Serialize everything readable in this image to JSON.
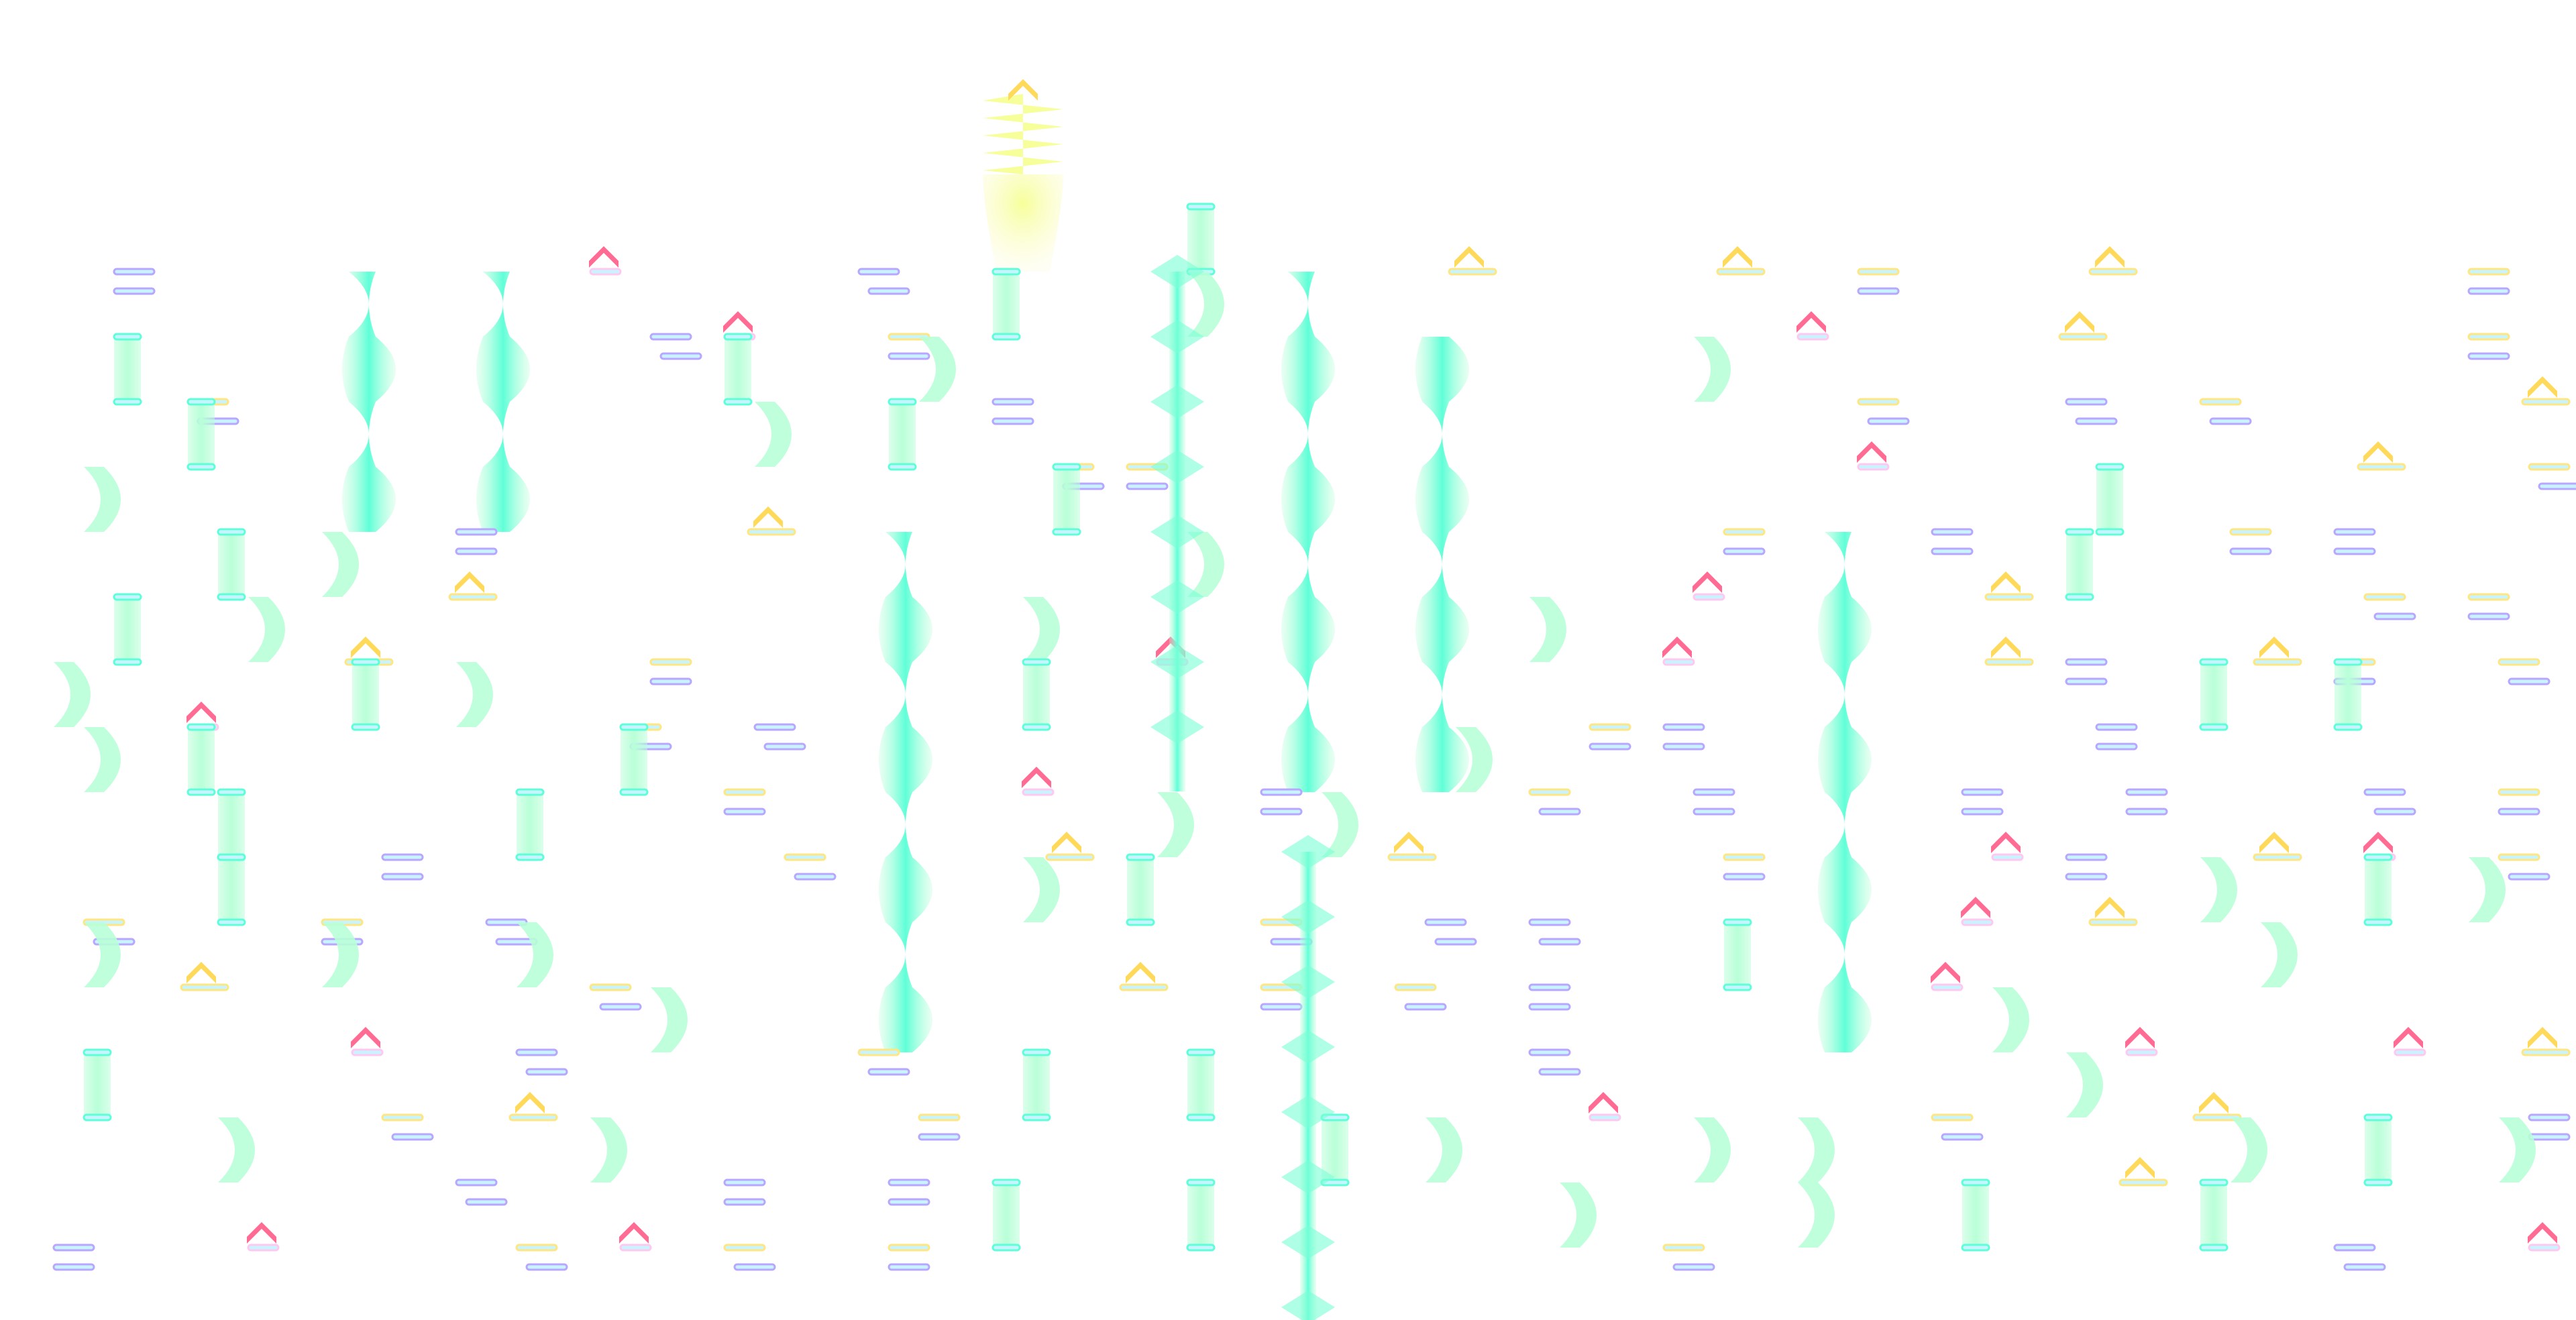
{
  "chart_view": {
    "background": "#ffffff",
    "note_types": [
      "tap",
      "ex-tap",
      "hold",
      "slide",
      "flick",
      "air",
      "air-hold"
    ],
    "colors": {
      "tap": "#b9a6ff",
      "tap_inner": "#c8f4ff",
      "ex_tap": "#ffe680",
      "hold": "#b8ffd8",
      "hold_core": "#5effd8",
      "slide": "#7affd6",
      "flick": "#ff6b93",
      "air": "#ffd95a",
      "air_hold": "#f4ff80"
    }
  }
}
